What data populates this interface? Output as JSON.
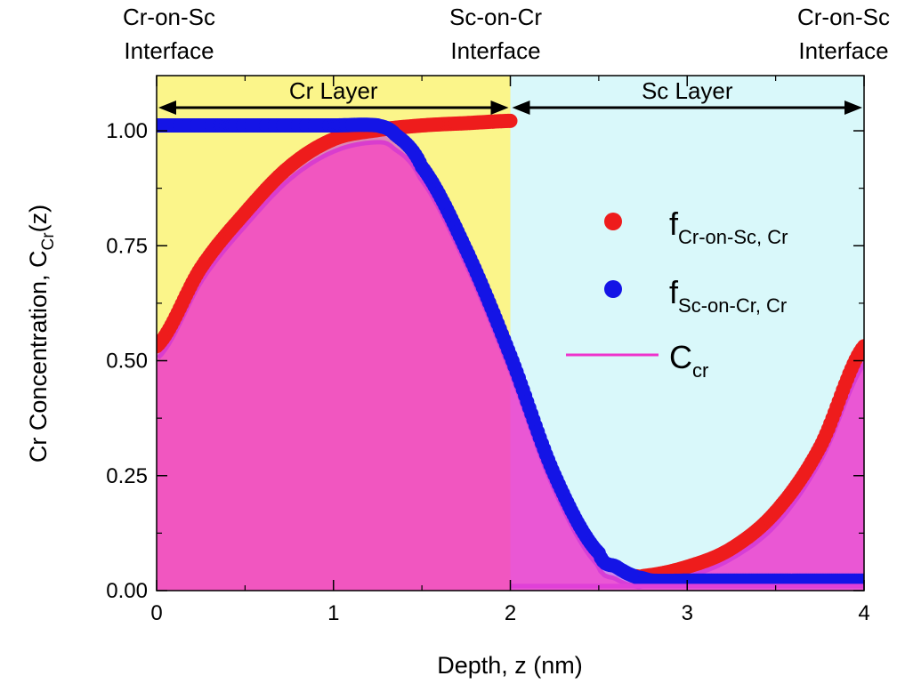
{
  "chart_data": {
    "type": "scatter",
    "xlabel": "Depth, z (nm)",
    "ylabel": {
      "main": "Cr Concentration, C",
      "sub": "Cr",
      "tail": "(z)"
    },
    "xlim": [
      0,
      4
    ],
    "ylim": [
      0,
      1.12
    ],
    "x_ticks": [
      "0",
      "1",
      "2",
      "3",
      "4"
    ],
    "y_ticks": [
      "0.00",
      "0.25",
      "0.50",
      "0.75",
      "1.00"
    ],
    "grid": false,
    "regions": [
      {
        "label": "Cr Layer",
        "x": [
          0,
          2
        ],
        "color": "#fbf58a"
      },
      {
        "label": "Sc Layer",
        "x": [
          2,
          4
        ],
        "color": "#d9f8fa"
      }
    ],
    "interfaces": [
      {
        "x": 0,
        "line1": "Cr-on-Sc",
        "line2": "Interface"
      },
      {
        "x": 2,
        "line1": "Sc-on-Cr",
        "line2": "Interface"
      },
      {
        "x": 4,
        "line1": "Cr-on-Sc",
        "line2": "Interface"
      }
    ],
    "legend_position": "right",
    "series": [
      {
        "name": "f",
        "name_sub": "Cr-on-Sc, Cr",
        "kind": "markers",
        "color": "#ee1c1c",
        "x": [
          0,
          0.25,
          0.5,
          0.75,
          1.0,
          1.25,
          1.5,
          1.75,
          2.0,
          2.7,
          2.75,
          3.0,
          3.25,
          3.5,
          3.75,
          4.0
        ],
        "y": [
          0.52,
          0.69,
          0.81,
          0.91,
          0.97,
          0.99,
          1.0,
          1.005,
          1.01,
          0.02,
          0.02,
          0.04,
          0.08,
          0.16,
          0.3,
          0.52
        ]
      },
      {
        "name": "f",
        "name_sub": "Sc-on-Cr, Cr",
        "kind": "markers",
        "color": "#1414e6",
        "x": [
          0,
          0.25,
          0.5,
          0.75,
          1.0,
          1.25,
          1.35,
          1.5,
          1.75,
          2.0,
          2.25,
          2.5,
          2.6,
          2.7,
          2.75,
          2.8,
          3.0,
          3.5,
          4.0
        ],
        "y": [
          1.0,
          1.0,
          1.0,
          1.0,
          1.0,
          1.0,
          0.98,
          0.91,
          0.73,
          0.5,
          0.24,
          0.07,
          0.04,
          0.02,
          0.015,
          0.01,
          0.01,
          0.01,
          0.01
        ]
      },
      {
        "name": "C",
        "name_sub": "cr",
        "kind": "area",
        "color": "#ee33cc",
        "x": [
          0,
          0.25,
          0.5,
          0.75,
          1.0,
          1.25,
          1.35,
          1.5,
          1.75,
          2.0,
          2.25,
          2.5,
          2.6,
          2.7,
          2.75,
          3.0,
          3.25,
          3.5,
          3.75,
          4.0
        ],
        "y": [
          0.51,
          0.68,
          0.8,
          0.9,
          0.96,
          0.98,
          0.965,
          0.9,
          0.72,
          0.49,
          0.23,
          0.06,
          0.03,
          0.015,
          0.015,
          0.035,
          0.075,
          0.15,
          0.29,
          0.5
        ]
      }
    ]
  }
}
